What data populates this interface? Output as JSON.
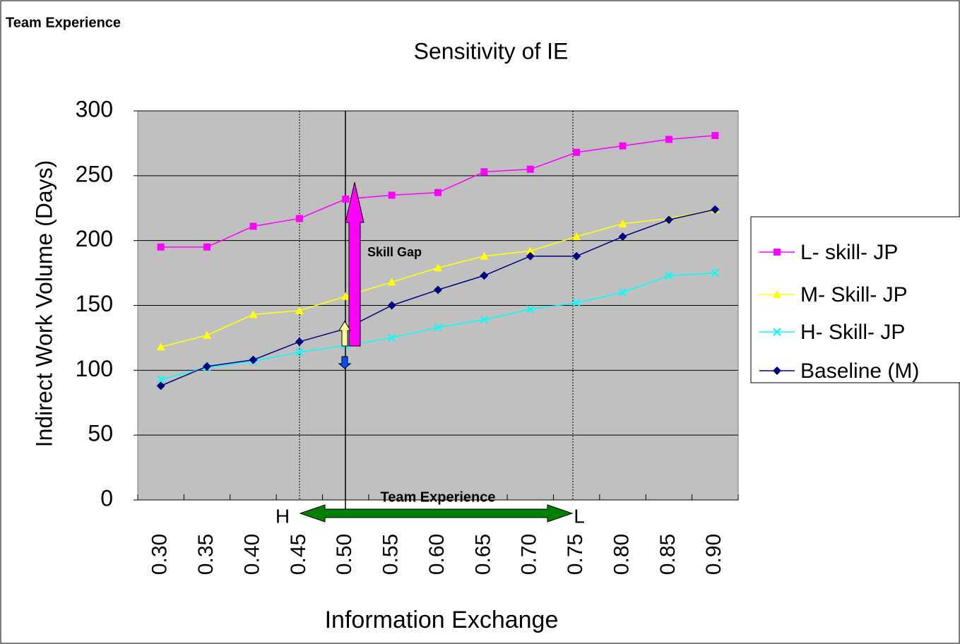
{
  "chart_data": {
    "type": "line",
    "title": "Sensitivity of IE",
    "header": "Team Experience",
    "x_label": "Information Exchange",
    "y_label": "Indirect Work Volume (Days)",
    "annotations": {
      "skill_gap": "Skill Gap",
      "team_experience": "Team Experience",
      "high": "H",
      "low": "L"
    },
    "categories": [
      "0.30",
      "0.35",
      "0.40",
      "0.45",
      "0.50",
      "0.55",
      "0.60",
      "0.65",
      "0.70",
      "0.75",
      "0.80",
      "0.85",
      "0.90"
    ],
    "series": [
      {
        "name": "L- skill- JP",
        "color": "#ff00ff",
        "marker": "square",
        "values": [
          195,
          195,
          211,
          217,
          232,
          235,
          237,
          253,
          255,
          268,
          273,
          278,
          281
        ]
      },
      {
        "name": "M- Skill- JP",
        "color": "#ffff00",
        "marker": "triangle",
        "values": [
          118,
          127,
          143,
          146,
          157,
          168,
          179,
          188,
          192,
          203,
          213,
          217,
          224
        ]
      },
      {
        "name": "H- Skill- JP",
        "color": "#00ffff",
        "marker": "x",
        "values": [
          93,
          102,
          107,
          114,
          119,
          125,
          133,
          139,
          147,
          152,
          160,
          173,
          175
        ]
      },
      {
        "name": "Baseline (M)",
        "color": "#000080",
        "marker": "diamond",
        "values": [
          88,
          103,
          108,
          122,
          132,
          150,
          162,
          173,
          188,
          188,
          203,
          216,
          224
        ]
      }
    ],
    "ylim": [
      0,
      300
    ],
    "yticks": [
      0,
      50,
      100,
      150,
      200,
      250,
      300
    ],
    "grid": true
  }
}
